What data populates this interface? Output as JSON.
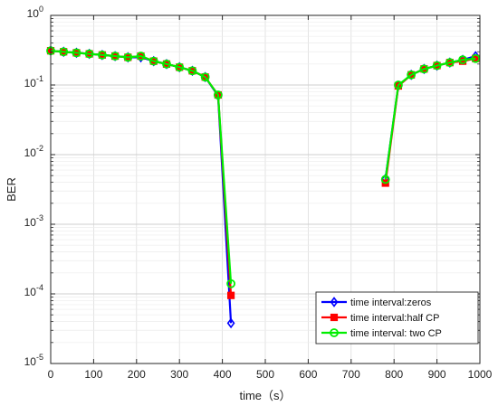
{
  "chart_data": {
    "type": "line",
    "title": "",
    "xlabel": "time（s）",
    "ylabel": "BER",
    "y_scale": "log",
    "xlim": [
      0,
      1000
    ],
    "ylim": [
      1e-05,
      1
    ],
    "x_ticks": [
      0,
      100,
      200,
      300,
      400,
      500,
      600,
      700,
      800,
      900,
      1000
    ],
    "x_tick_labels": [
      "0",
      "100",
      "200",
      "300",
      "400",
      "500",
      "600",
      "700",
      "800",
      "900",
      "1000"
    ],
    "y_ticks": [
      1e-05,
      0.0001,
      0.001,
      0.01,
      0.1,
      1
    ],
    "y_tick_labels": [
      {
        "base": "10",
        "exp": "-5"
      },
      {
        "base": "10",
        "exp": "-4"
      },
      {
        "base": "10",
        "exp": "-3"
      },
      {
        "base": "10",
        "exp": "-2"
      },
      {
        "base": "10",
        "exp": "-1"
      },
      {
        "base": "10",
        "exp": "0"
      }
    ],
    "grid": true,
    "legend_position": "bottom-right",
    "series": [
      {
        "name": "time interval:zeros",
        "color": "#0000ff",
        "marker": "diamond",
        "segments": [
          {
            "x": [
              0,
              30,
              60,
              90,
              120,
              150,
              180,
              210,
              240,
              270,
              300,
              330,
              360,
              390,
              420
            ],
            "y": [
              0.31,
              0.3,
              0.29,
              0.28,
              0.27,
              0.26,
              0.25,
              0.25,
              0.22,
              0.2,
              0.18,
              0.16,
              0.13,
              0.07,
              3.8e-05
            ]
          },
          {
            "x": [
              780,
              810,
              840,
              870,
              900,
              930,
              960,
              990
            ],
            "y": [
              0.0045,
              0.098,
              0.14,
              0.17,
              0.19,
              0.21,
              0.23,
              0.26
            ]
          }
        ]
      },
      {
        "name": "time interval:half CP",
        "color": "#ff0000",
        "marker": "square",
        "segments": [
          {
            "x": [
              0,
              30,
              60,
              90,
              120,
              150,
              180,
              210,
              240,
              270,
              300,
              330,
              360,
              390,
              420
            ],
            "y": [
              0.31,
              0.3,
              0.29,
              0.28,
              0.27,
              0.26,
              0.25,
              0.26,
              0.22,
              0.2,
              0.18,
              0.16,
              0.13,
              0.072,
              9.5e-05
            ]
          },
          {
            "x": [
              780,
              810,
              840,
              870,
              900,
              930,
              960,
              990
            ],
            "y": [
              0.0039,
              0.097,
              0.14,
              0.17,
              0.19,
              0.21,
              0.22,
              0.24
            ]
          }
        ]
      },
      {
        "name": "time interval: two CP",
        "color": "#00ee00",
        "marker": "circle",
        "segments": [
          {
            "x": [
              0,
              30,
              60,
              90,
              120,
              150,
              180,
              210,
              240,
              270,
              300,
              330,
              360,
              390,
              420
            ],
            "y": [
              0.31,
              0.3,
              0.29,
              0.28,
              0.27,
              0.26,
              0.25,
              0.26,
              0.22,
              0.2,
              0.18,
              0.16,
              0.13,
              0.072,
              0.00014
            ]
          },
          {
            "x": [
              780,
              810,
              840,
              870,
              900,
              930,
              960,
              990
            ],
            "y": [
              0.0044,
              0.1,
              0.14,
              0.17,
              0.19,
              0.21,
              0.23,
              0.24
            ]
          }
        ]
      }
    ]
  }
}
